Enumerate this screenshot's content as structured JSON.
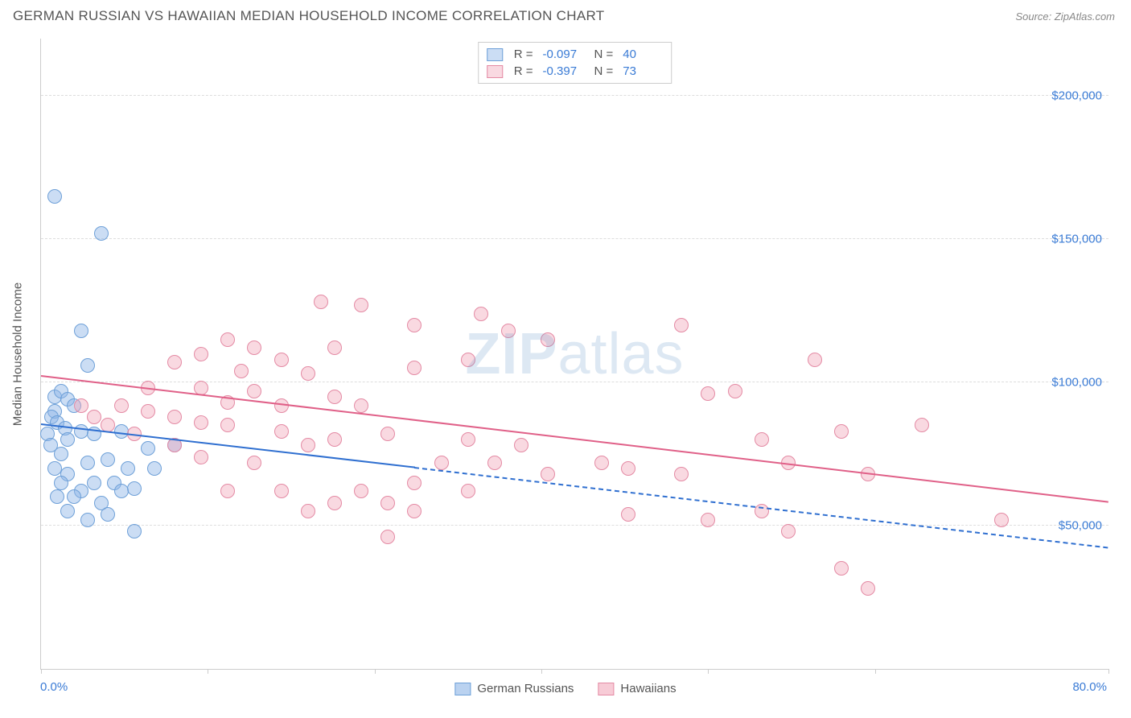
{
  "header": {
    "title": "GERMAN RUSSIAN VS HAWAIIAN MEDIAN HOUSEHOLD INCOME CORRELATION CHART",
    "source": "Source: ZipAtlas.com"
  },
  "chart": {
    "type": "scatter",
    "ylabel": "Median Household Income",
    "xmin": 0,
    "xmax": 80,
    "ymin": 0,
    "ymax": 220000,
    "xtick_left": "0.0%",
    "xtick_right": "80.0%",
    "xtick_positions": [
      0,
      12.5,
      25,
      37.5,
      50,
      62.5,
      80
    ],
    "yticks": [
      50000,
      100000,
      150000,
      200000
    ],
    "ytick_labels": [
      "$50,000",
      "$100,000",
      "$150,000",
      "$200,000"
    ],
    "grid_color": "#dddddd",
    "axis_color": "#cccccc",
    "label_color": "#3a7bd5",
    "text_color": "#555555",
    "point_radius": 9,
    "watermark_prefix": "ZIP",
    "watermark_suffix": "atlas",
    "series": [
      {
        "name": "German Russians",
        "label": "German Russians",
        "fill": "rgba(140,180,230,0.45)",
        "stroke": "#6ea0d8",
        "R": "-0.097",
        "N": "40",
        "trend": {
          "color": "#2f6fd0",
          "x1": 0,
          "y1": 85000,
          "x2": 80,
          "y2": 42000,
          "solid_until_x": 28
        },
        "points": [
          [
            1,
            165000
          ],
          [
            4.5,
            152000
          ],
          [
            3,
            118000
          ],
          [
            3.5,
            106000
          ],
          [
            1,
            95000
          ],
          [
            1.5,
            97000
          ],
          [
            2,
            94000
          ],
          [
            1,
            90000
          ],
          [
            0.8,
            88000
          ],
          [
            2.5,
            92000
          ],
          [
            1.2,
            86000
          ],
          [
            1.8,
            84000
          ],
          [
            0.5,
            82000
          ],
          [
            2,
            80000
          ],
          [
            0.7,
            78000
          ],
          [
            3,
            83000
          ],
          [
            1.5,
            75000
          ],
          [
            4,
            82000
          ],
          [
            6,
            83000
          ],
          [
            8,
            77000
          ],
          [
            5,
            73000
          ],
          [
            3.5,
            72000
          ],
          [
            2,
            68000
          ],
          [
            1,
            70000
          ],
          [
            6.5,
            70000
          ],
          [
            8.5,
            70000
          ],
          [
            10,
            78000
          ],
          [
            1.5,
            65000
          ],
          [
            4,
            65000
          ],
          [
            5.5,
            65000
          ],
          [
            3,
            62000
          ],
          [
            7,
            63000
          ],
          [
            2.5,
            60000
          ],
          [
            6,
            62000
          ],
          [
            4.5,
            58000
          ],
          [
            2,
            55000
          ],
          [
            5,
            54000
          ],
          [
            7,
            48000
          ],
          [
            3.5,
            52000
          ],
          [
            1.2,
            60000
          ]
        ]
      },
      {
        "name": "Hawaiians",
        "label": "Hawaiians",
        "fill": "rgba(240,160,180,0.40)",
        "stroke": "#e48aa4",
        "R": "-0.397",
        "N": "73",
        "trend": {
          "color": "#e06088",
          "x1": 0,
          "y1": 102000,
          "x2": 80,
          "y2": 58000,
          "solid_until_x": 80
        },
        "points": [
          [
            21,
            128000
          ],
          [
            24,
            127000
          ],
          [
            28,
            120000
          ],
          [
            35,
            118000
          ],
          [
            33,
            124000
          ],
          [
            38,
            115000
          ],
          [
            48,
            120000
          ],
          [
            14,
            115000
          ],
          [
            16,
            112000
          ],
          [
            18,
            108000
          ],
          [
            12,
            110000
          ],
          [
            22,
            112000
          ],
          [
            10,
            107000
          ],
          [
            15,
            104000
          ],
          [
            20,
            103000
          ],
          [
            8,
            98000
          ],
          [
            12,
            98000
          ],
          [
            16,
            97000
          ],
          [
            14,
            93000
          ],
          [
            18,
            92000
          ],
          [
            22,
            95000
          ],
          [
            24,
            92000
          ],
          [
            28,
            105000
          ],
          [
            32,
            108000
          ],
          [
            58,
            108000
          ],
          [
            6,
            92000
          ],
          [
            8,
            90000
          ],
          [
            4,
            88000
          ],
          [
            10,
            88000
          ],
          [
            12,
            86000
          ],
          [
            5,
            85000
          ],
          [
            3,
            92000
          ],
          [
            7,
            82000
          ],
          [
            14,
            85000
          ],
          [
            18,
            83000
          ],
          [
            22,
            80000
          ],
          [
            20,
            78000
          ],
          [
            26,
            82000
          ],
          [
            32,
            80000
          ],
          [
            36,
            78000
          ],
          [
            30,
            72000
          ],
          [
            50,
            96000
          ],
          [
            52,
            97000
          ],
          [
            54,
            80000
          ],
          [
            60,
            83000
          ],
          [
            42,
            72000
          ],
          [
            44,
            70000
          ],
          [
            48,
            68000
          ],
          [
            38,
            68000
          ],
          [
            34,
            72000
          ],
          [
            28,
            65000
          ],
          [
            24,
            62000
          ],
          [
            32,
            62000
          ],
          [
            26,
            58000
          ],
          [
            28,
            55000
          ],
          [
            22,
            58000
          ],
          [
            20,
            55000
          ],
          [
            18,
            62000
          ],
          [
            14,
            62000
          ],
          [
            44,
            54000
          ],
          [
            50,
            52000
          ],
          [
            54,
            55000
          ],
          [
            56,
            72000
          ],
          [
            62,
            68000
          ],
          [
            66,
            85000
          ],
          [
            72,
            52000
          ],
          [
            60,
            35000
          ],
          [
            62,
            28000
          ],
          [
            56,
            48000
          ],
          [
            26,
            46000
          ],
          [
            10,
            78000
          ],
          [
            12,
            74000
          ],
          [
            16,
            72000
          ]
        ]
      }
    ],
    "legend_bottom": [
      {
        "label": "German Russians",
        "fill": "rgba(140,180,230,0.6)",
        "stroke": "#6ea0d8"
      },
      {
        "label": "Hawaiians",
        "fill": "rgba(240,160,180,0.55)",
        "stroke": "#e48aa4"
      }
    ]
  }
}
